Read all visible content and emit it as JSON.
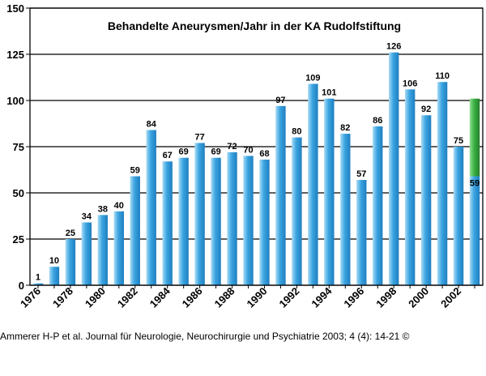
{
  "chart_data": {
    "type": "bar",
    "title": "Behandelte Aneurysmen/Jahr  in der KA Rudolfstiftung",
    "xlabel": "",
    "ylabel": "",
    "ylim": [
      0,
      150
    ],
    "yticks": [
      "0",
      "25",
      "50",
      "75",
      "100",
      "125",
      "150"
    ],
    "grid": true,
    "categories": [
      "1976",
      "1977",
      "1978",
      "1979",
      "1980",
      "1981",
      "1982",
      "1983",
      "1984",
      "1985",
      "1986",
      "1987",
      "1988",
      "1989",
      "1990",
      "1991",
      "1992",
      "1993",
      "1994",
      "1995",
      "1996",
      "1997",
      "1998",
      "1999",
      "2000",
      "2001",
      "2002",
      "2003"
    ],
    "xtick_labels": [
      "1976",
      "1978",
      "1980",
      "1982",
      "1984",
      "1986",
      "1988",
      "1990",
      "1992",
      "1994",
      "1996",
      "1998",
      "2000",
      "2002"
    ],
    "values": [
      1,
      10,
      25,
      34,
      38,
      40,
      59,
      84,
      67,
      69,
      77,
      69,
      72,
      70,
      68,
      97,
      80,
      109,
      101,
      82,
      57,
      86,
      126,
      106,
      92,
      110,
      75,
      59
    ],
    "data_labels": [
      "1",
      "10",
      "25",
      "34",
      "38",
      "40",
      "59",
      "84",
      "67",
      "69",
      "77",
      "69",
      "72",
      "70",
      "68",
      "97",
      "80",
      "109",
      "101",
      "82",
      "57",
      "86",
      "126",
      "106",
      "92",
      "110",
      "75",
      "59"
    ],
    "extension": {
      "category": "2003",
      "from": 59,
      "to": 101,
      "color": "#3cb043"
    },
    "colors": {
      "bar": "#3aa3e0",
      "bar_light": "#a8dcf6",
      "bar_dark": "#1f7fc0",
      "extension": "#3cb043"
    }
  },
  "footer": "Ammerer H-P et al. Journal für Neurologie, Neurochirurgie und Psychiatrie 2003; 4 (4): 14-21 ©"
}
